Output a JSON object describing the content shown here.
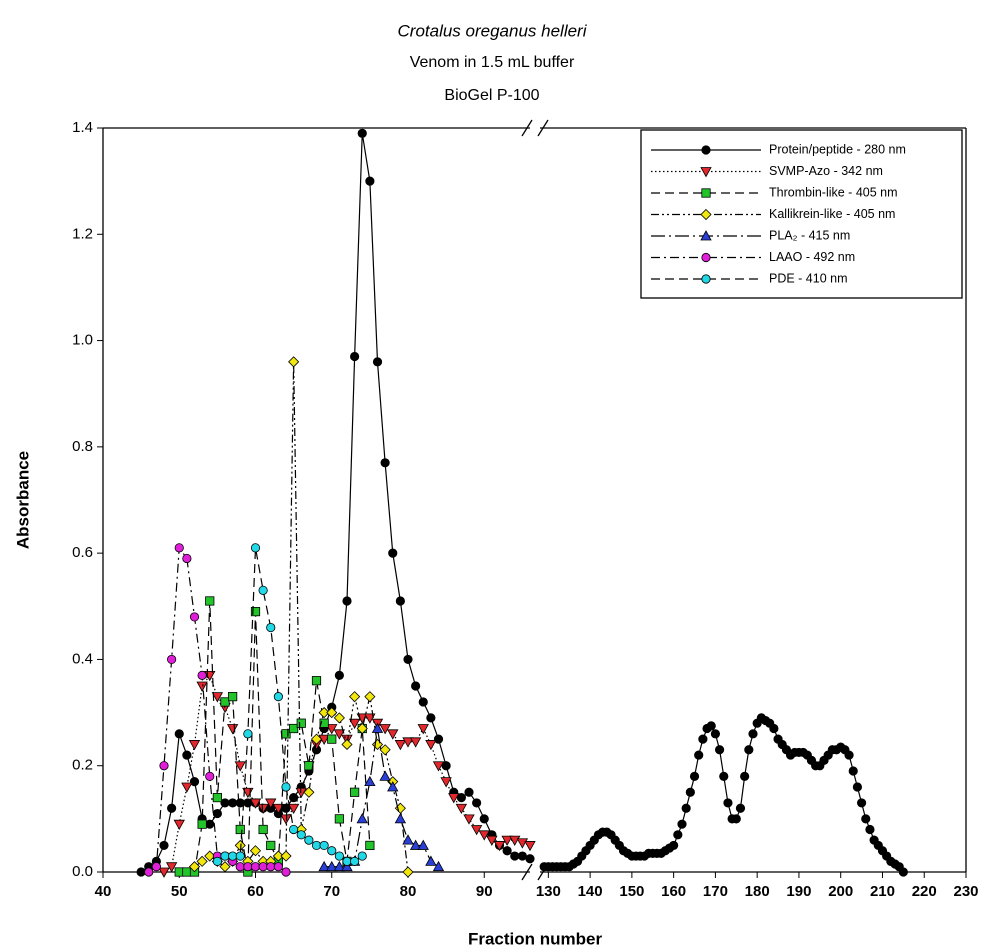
{
  "chart_data": {
    "type": "line",
    "title": "Crotalus oreganus helleri",
    "subtitles": [
      "Venom in 1.5 mL buffer",
      "BioGel P-100"
    ],
    "xlabel": "Fraction number",
    "ylabel": "Absorbance",
    "x_segments": [
      {
        "xlim": [
          40,
          96
        ],
        "xticks": [
          40,
          50,
          60,
          70,
          80,
          90
        ]
      },
      {
        "xlim": [
          128,
          230
        ],
        "xticks": [
          130,
          140,
          150,
          160,
          170,
          180,
          190,
          200,
          210,
          220,
          230
        ]
      }
    ],
    "ylim": [
      0,
      1.4
    ],
    "yticks": [
      {
        "value": 0,
        "label": "0.0"
      },
      0.2,
      0.4,
      0.6,
      0.8,
      {
        "value": 1,
        "label": "1.0"
      },
      1.2,
      1.4
    ],
    "grid": false,
    "legend": "upper right",
    "series": [
      {
        "name": "Protein/peptide - 280 nm",
        "color": "#000000",
        "marker_color": "#000000",
        "marker": "circle",
        "dash": "solid",
        "x": [
          45,
          46,
          47,
          48,
          49,
          50,
          51,
          52,
          53,
          54,
          55,
          56,
          57,
          58,
          59,
          60,
          61,
          62,
          63,
          64,
          65,
          66,
          67,
          68,
          69,
          70,
          71,
          72,
          73,
          74,
          75,
          76,
          77,
          78,
          79,
          80,
          81,
          82,
          83,
          84,
          85,
          86,
          87,
          88,
          89,
          90,
          91,
          92,
          93,
          94,
          95,
          96,
          null,
          129,
          130,
          131,
          132,
          133,
          134,
          135,
          136,
          137,
          138,
          139,
          140,
          141,
          142,
          143,
          144,
          145,
          146,
          147,
          148,
          149,
          150,
          151,
          152,
          153,
          154,
          155,
          156,
          157,
          158,
          159,
          160,
          161,
          162,
          163,
          164,
          165,
          166,
          167,
          168,
          169,
          170,
          171,
          172,
          173,
          174,
          175,
          176,
          177,
          178,
          179,
          180,
          181,
          182,
          183,
          184,
          185,
          186,
          187,
          188,
          189,
          190,
          191,
          192,
          193,
          194,
          195,
          196,
          197,
          198,
          199,
          200,
          201,
          202,
          203,
          204,
          205,
          206,
          207,
          208,
          209,
          210,
          211,
          212,
          213,
          214,
          215
        ],
        "values": [
          0,
          0.01,
          0.02,
          0.05,
          0.12,
          0.26,
          0.22,
          0.17,
          0.1,
          0.09,
          0.11,
          0.13,
          0.13,
          0.13,
          0.13,
          0.13,
          0.12,
          0.12,
          0.11,
          0.12,
          0.14,
          0.16,
          0.19,
          0.23,
          0.27,
          0.31,
          0.37,
          0.51,
          0.97,
          1.39,
          1.3,
          0.96,
          0.77,
          0.6,
          0.51,
          0.4,
          0.35,
          0.32,
          0.29,
          0.25,
          0.2,
          0.15,
          0.14,
          0.15,
          0.13,
          0.1,
          0.07,
          0.05,
          0.04,
          0.03,
          0.03,
          0.025,
          null,
          0.01,
          0.01,
          0.01,
          0.01,
          0.01,
          0.01,
          0.01,
          0.015,
          0.02,
          0.03,
          0.04,
          0.05,
          0.06,
          0.07,
          0.075,
          0.075,
          0.07,
          0.06,
          0.05,
          0.04,
          0.035,
          0.03,
          0.03,
          0.03,
          0.03,
          0.035,
          0.035,
          0.035,
          0.035,
          0.04,
          0.045,
          0.05,
          0.07,
          0.09,
          0.12,
          0.15,
          0.18,
          0.22,
          0.25,
          0.27,
          0.275,
          0.26,
          0.23,
          0.18,
          0.13,
          0.1,
          0.1,
          0.12,
          0.18,
          0.23,
          0.26,
          0.28,
          0.29,
          0.285,
          0.28,
          0.27,
          0.25,
          0.24,
          0.23,
          0.22,
          0.225,
          0.225,
          0.225,
          0.22,
          0.21,
          0.2,
          0.2,
          0.21,
          0.22,
          0.23,
          0.23,
          0.235,
          0.23,
          0.22,
          0.19,
          0.16,
          0.13,
          0.1,
          0.08,
          0.06,
          0.05,
          0.04,
          0.03,
          0.02,
          0.015,
          0.01,
          0
        ]
      },
      {
        "name": "SVMP-Azo - 342 nm",
        "color": "#000000",
        "marker_color": "#e0282d",
        "marker": "triangle-down",
        "dash": "dotted",
        "x": [
          48,
          49,
          50,
          51,
          52,
          53,
          54,
          55,
          56,
          57,
          58,
          59,
          60,
          61,
          62,
          63,
          64,
          65,
          66,
          67,
          68,
          69,
          70,
          71,
          72,
          73,
          74,
          75,
          76,
          77,
          78,
          79,
          80,
          81,
          82,
          83,
          84,
          85,
          86,
          87,
          88,
          89,
          90,
          91,
          92,
          93,
          94,
          95,
          96
        ],
        "values": [
          0,
          0.01,
          0.09,
          0.16,
          0.24,
          0.35,
          0.37,
          0.33,
          0.31,
          0.27,
          0.2,
          0.15,
          0.13,
          0.12,
          0.13,
          0.12,
          0.1,
          0.12,
          0.15,
          0.2,
          0.24,
          0.25,
          0.27,
          0.26,
          0.25,
          0.28,
          0.29,
          0.29,
          0.28,
          0.27,
          0.26,
          0.24,
          0.245,
          0.245,
          0.27,
          0.24,
          0.2,
          0.17,
          0.14,
          0.12,
          0.1,
          0.08,
          0.07,
          0.06,
          0.05,
          0.06,
          0.06,
          0.055,
          0.05
        ]
      },
      {
        "name": "Thrombin-like - 405 nm",
        "color": "#000000",
        "marker_color": "#22c42a",
        "marker": "square",
        "dash": "dashed",
        "x": [
          50,
          51,
          52,
          53,
          54,
          55,
          56,
          57,
          58,
          59,
          60,
          61,
          62,
          63,
          64,
          65,
          66,
          67,
          68,
          69,
          70,
          71,
          72,
          73,
          74,
          75
        ],
        "values": [
          0,
          0,
          0,
          0.09,
          0.51,
          0.14,
          0.32,
          0.33,
          0.08,
          0,
          0.49,
          0.08,
          0.05,
          0.02,
          0.26,
          0.27,
          0.28,
          0.2,
          0.36,
          0.28,
          0.25,
          0.1,
          0.02,
          0.15,
          0.27,
          0.05
        ]
      },
      {
        "name": "Kallikrein-like - 405 nm",
        "color": "#000000",
        "marker_color": "#f2e60f",
        "marker": "diamond",
        "dash": "dashdotdot",
        "x": [
          52,
          53,
          54,
          55,
          56,
          57,
          58,
          59,
          60,
          61,
          62,
          63,
          64,
          65,
          66,
          67,
          68,
          69,
          70,
          71,
          72,
          73,
          74,
          75,
          76,
          77,
          78,
          79,
          80
        ],
        "values": [
          0.01,
          0.02,
          0.03,
          0.02,
          0.01,
          0.02,
          0.05,
          0.02,
          0.04,
          0.02,
          0.02,
          0.03,
          0.03,
          0.96,
          0.08,
          0.15,
          0.25,
          0.3,
          0.3,
          0.29,
          0.24,
          0.33,
          0.27,
          0.33,
          0.24,
          0.23,
          0.17,
          0.12,
          0
        ]
      },
      {
        "name": "PLA₂ - 415 nm",
        "color": "#000000",
        "marker_color": "#2a3fd6",
        "marker": "triangle-up",
        "dash": "longdashdot",
        "x": [
          69,
          70,
          71,
          72,
          73,
          74,
          75,
          76,
          77,
          78,
          79,
          80,
          81,
          82,
          83,
          84
        ],
        "values": [
          0.01,
          0.01,
          0.01,
          0.01,
          0.02,
          0.1,
          0.17,
          0.27,
          0.18,
          0.16,
          0.1,
          0.06,
          0.05,
          0.05,
          0.02,
          0.01
        ]
      },
      {
        "name": "LAAO - 492 nm",
        "color": "#000000",
        "marker_color": "#e020d8",
        "marker": "circle",
        "dash": "dashdot",
        "x": [
          46,
          47,
          48,
          49,
          50,
          51,
          52,
          53,
          54,
          55,
          56,
          57,
          58,
          59,
          60,
          61,
          62,
          63,
          64
        ],
        "values": [
          0,
          0.01,
          0.2,
          0.4,
          0.61,
          0.59,
          0.48,
          0.37,
          0.18,
          0.03,
          0.03,
          0.02,
          0.01,
          0.01,
          0.01,
          0.01,
          0.01,
          0.01,
          0
        ]
      },
      {
        "name": "PDE - 410 nm",
        "color": "#000000",
        "marker_color": "#22d8e6",
        "marker": "circle",
        "dash": "dashed",
        "x": [
          55,
          56,
          57,
          58,
          59,
          60,
          61,
          62,
          63,
          64,
          65,
          66,
          67,
          68,
          69,
          70,
          71,
          72,
          73,
          74
        ],
        "values": [
          0.02,
          0.03,
          0.03,
          0.03,
          0.26,
          0.61,
          0.53,
          0.46,
          0.33,
          0.16,
          0.08,
          0.07,
          0.06,
          0.05,
          0.05,
          0.04,
          0.03,
          0.02,
          0.02,
          0.03
        ]
      }
    ]
  }
}
